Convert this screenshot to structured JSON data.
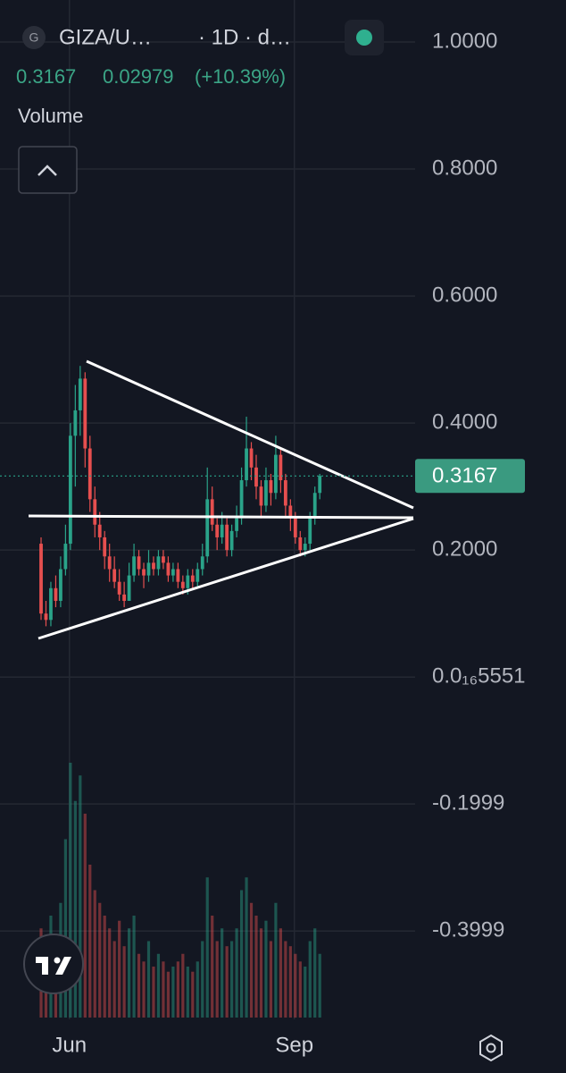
{
  "header": {
    "icon_letter": "G",
    "symbol": "GIZA/U…",
    "interval": "· 1D · d…",
    "price": "0.3167",
    "change": "0.02979",
    "change_pct": "(+10.39%)",
    "volume_label": "Volume"
  },
  "chart_data": {
    "type": "candlestick",
    "candles": [
      [
        0.21,
        0.22,
        0.09,
        0.1
      ],
      [
        0.1,
        0.12,
        0.08,
        0.09
      ],
      [
        0.09,
        0.15,
        0.08,
        0.14
      ],
      [
        0.14,
        0.16,
        0.11,
        0.12
      ],
      [
        0.12,
        0.19,
        0.11,
        0.17
      ],
      [
        0.17,
        0.24,
        0.16,
        0.21
      ],
      [
        0.21,
        0.4,
        0.2,
        0.38
      ],
      [
        0.38,
        0.46,
        0.3,
        0.42
      ],
      [
        0.42,
        0.49,
        0.38,
        0.47
      ],
      [
        0.47,
        0.48,
        0.33,
        0.36
      ],
      [
        0.36,
        0.38,
        0.26,
        0.28
      ],
      [
        0.28,
        0.3,
        0.22,
        0.24
      ],
      [
        0.24,
        0.26,
        0.2,
        0.22
      ],
      [
        0.22,
        0.23,
        0.17,
        0.19
      ],
      [
        0.19,
        0.21,
        0.15,
        0.17
      ],
      [
        0.17,
        0.19,
        0.14,
        0.15
      ],
      [
        0.15,
        0.17,
        0.12,
        0.13
      ],
      [
        0.13,
        0.15,
        0.11,
        0.12
      ],
      [
        0.12,
        0.18,
        0.12,
        0.16
      ],
      [
        0.16,
        0.21,
        0.15,
        0.19
      ],
      [
        0.19,
        0.2,
        0.16,
        0.17
      ],
      [
        0.17,
        0.18,
        0.14,
        0.16
      ],
      [
        0.16,
        0.2,
        0.15,
        0.18
      ],
      [
        0.18,
        0.19,
        0.16,
        0.17
      ],
      [
        0.17,
        0.2,
        0.16,
        0.19
      ],
      [
        0.19,
        0.2,
        0.17,
        0.18
      ],
      [
        0.18,
        0.19,
        0.15,
        0.16
      ],
      [
        0.16,
        0.18,
        0.15,
        0.17
      ],
      [
        0.17,
        0.18,
        0.14,
        0.15
      ],
      [
        0.15,
        0.16,
        0.13,
        0.14
      ],
      [
        0.14,
        0.17,
        0.13,
        0.16
      ],
      [
        0.16,
        0.17,
        0.14,
        0.15
      ],
      [
        0.15,
        0.18,
        0.14,
        0.17
      ],
      [
        0.17,
        0.21,
        0.16,
        0.19
      ],
      [
        0.19,
        0.33,
        0.18,
        0.28
      ],
      [
        0.28,
        0.3,
        0.23,
        0.24
      ],
      [
        0.24,
        0.25,
        0.2,
        0.22
      ],
      [
        0.22,
        0.26,
        0.21,
        0.24
      ],
      [
        0.24,
        0.25,
        0.19,
        0.2
      ],
      [
        0.2,
        0.24,
        0.19,
        0.23
      ],
      [
        0.23,
        0.27,
        0.22,
        0.25
      ],
      [
        0.25,
        0.33,
        0.24,
        0.31
      ],
      [
        0.31,
        0.41,
        0.3,
        0.36
      ],
      [
        0.36,
        0.37,
        0.31,
        0.33
      ],
      [
        0.33,
        0.35,
        0.28,
        0.3
      ],
      [
        0.3,
        0.31,
        0.25,
        0.27
      ],
      [
        0.27,
        0.33,
        0.26,
        0.31
      ],
      [
        0.31,
        0.32,
        0.27,
        0.29
      ],
      [
        0.29,
        0.38,
        0.28,
        0.35
      ],
      [
        0.35,
        0.36,
        0.29,
        0.31
      ],
      [
        0.31,
        0.32,
        0.25,
        0.27
      ],
      [
        0.27,
        0.28,
        0.23,
        0.25
      ],
      [
        0.25,
        0.26,
        0.21,
        0.22
      ],
      [
        0.22,
        0.23,
        0.19,
        0.2
      ],
      [
        0.2,
        0.22,
        0.19,
        0.21
      ],
      [
        0.21,
        0.26,
        0.2,
        0.25
      ],
      [
        0.25,
        0.3,
        0.24,
        0.29
      ],
      [
        0.29,
        0.32,
        0.28,
        0.3167
      ]
    ],
    "volume": [
      35,
      25,
      40,
      30,
      45,
      70,
      100,
      85,
      95,
      80,
      60,
      50,
      45,
      40,
      35,
      30,
      38,
      28,
      35,
      40,
      25,
      22,
      30,
      20,
      25,
      22,
      18,
      20,
      22,
      25,
      20,
      18,
      22,
      30,
      55,
      40,
      30,
      35,
      28,
      30,
      35,
      50,
      55,
      45,
      40,
      35,
      38,
      30,
      45,
      35,
      30,
      28,
      25,
      22,
      20,
      30,
      35,
      25
    ],
    "up_color": "#2aa389",
    "down_color": "#e64f4f",
    "ylim": [
      -0.539,
      1.0662
    ],
    "yticks": [
      {
        "value": 1,
        "label": "1.0000"
      },
      {
        "value": 0.8,
        "label": "0.8000"
      },
      {
        "value": 0.6,
        "label": "0.6000"
      },
      {
        "value": 0.4,
        "label": "0.4000"
      },
      {
        "value": 0.2,
        "label": "0.2000"
      },
      {
        "value": 5.551e-17,
        "label": "0.0₁₆5551"
      },
      -0.1999,
      -0.3999
    ],
    "xlim": [
      -8.4,
      76.5
    ],
    "xticks": [
      {
        "value": 5.8,
        "label": "Jun"
      },
      {
        "value": 51.8,
        "label": "Sep"
      }
    ],
    "last_price": 0.3167,
    "grid": true
  }
}
